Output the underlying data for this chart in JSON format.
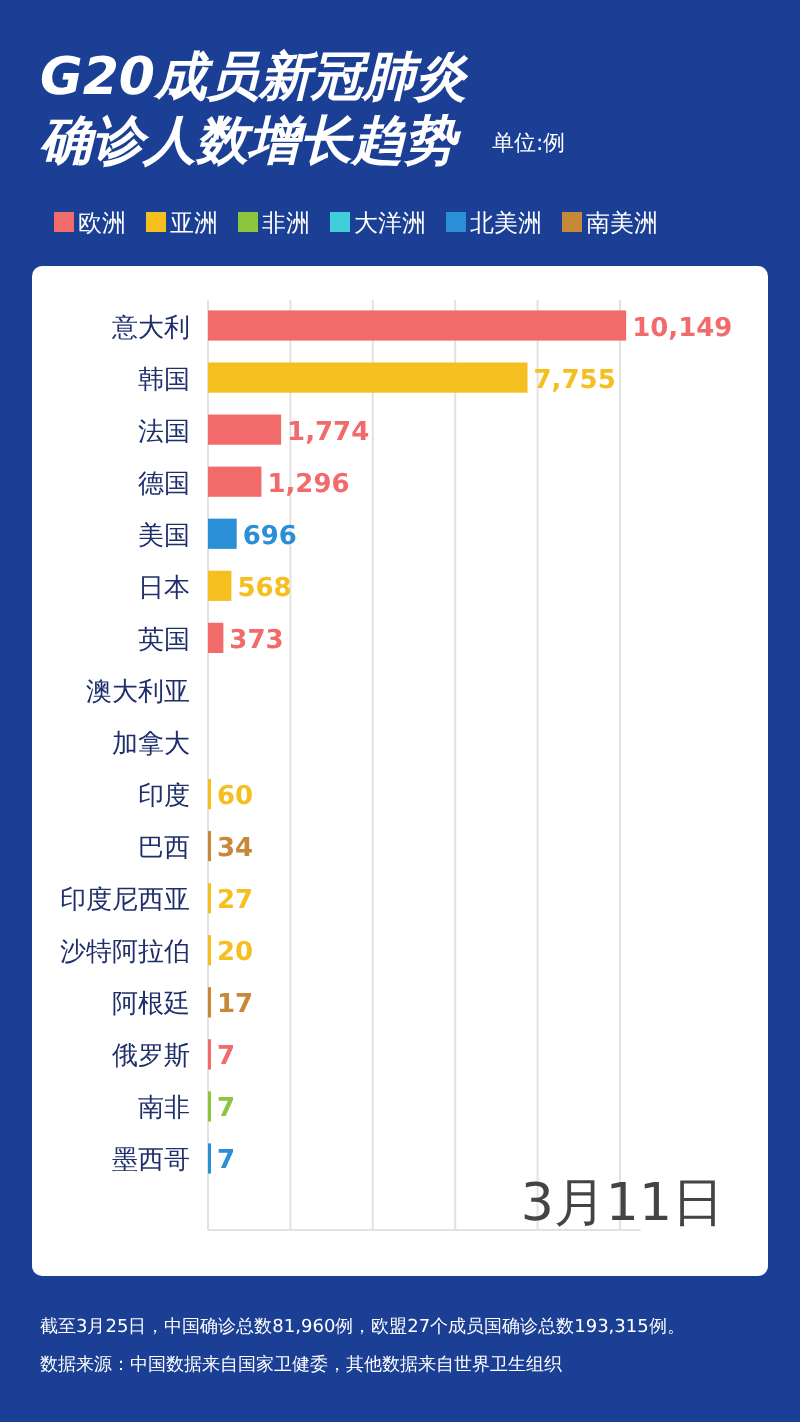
{
  "chart_data": {
    "type": "bar",
    "orientation": "horizontal",
    "title": "G20成员新冠肺炎确诊人数增长趋势",
    "subtitle": "单位:例",
    "categories": [
      "意大利",
      "韩国",
      "法国",
      "德国",
      "美国",
      "日本",
      "英国",
      "澳大利亚",
      "加拿大",
      "印度",
      "巴西",
      "印度尼西亚",
      "沙特阿拉伯",
      "阿根廷",
      "俄罗斯",
      "南非",
      "墨西哥"
    ],
    "series": [
      {
        "name": "欧洲",
        "color": "#f26b6b",
        "values": [
          10149,
          null,
          1774,
          1296,
          null,
          null,
          373,
          null,
          null,
          null,
          null,
          null,
          null,
          null,
          7,
          null,
          null
        ],
        "value_labels": [
          "10,149",
          null,
          "1,774",
          "1,296",
          null,
          null,
          "373",
          null,
          null,
          null,
          null,
          null,
          null,
          null,
          "7",
          null,
          null
        ]
      },
      {
        "name": "亚洲",
        "color": "#f5bf1f",
        "values": [
          null,
          7755,
          null,
          null,
          null,
          568,
          null,
          null,
          null,
          60,
          null,
          27,
          20,
          null,
          null,
          null,
          null
        ],
        "value_labels": [
          null,
          "7,755",
          null,
          null,
          null,
          "568",
          null,
          null,
          null,
          "60",
          null,
          "27",
          "20",
          null,
          null,
          null,
          null
        ]
      },
      {
        "name": "非洲",
        "color": "#8cc63f",
        "values": [
          null,
          null,
          null,
          null,
          null,
          null,
          null,
          null,
          null,
          null,
          null,
          null,
          null,
          null,
          null,
          7,
          null
        ],
        "value_labels": [
          null,
          null,
          null,
          null,
          null,
          null,
          null,
          null,
          null,
          null,
          null,
          null,
          null,
          null,
          null,
          "7",
          null
        ]
      },
      {
        "name": "大洋洲",
        "color": "#3fcfd8",
        "values": [
          null,
          null,
          null,
          null,
          null,
          null,
          null,
          null,
          null,
          null,
          null,
          null,
          null,
          null,
          null,
          null,
          null
        ]
      },
      {
        "name": "北美洲",
        "color": "#2a8fd6",
        "values": [
          null,
          null,
          null,
          null,
          696,
          null,
          null,
          null,
          null,
          null,
          null,
          null,
          null,
          null,
          null,
          null,
          7
        ],
        "value_labels": [
          null,
          null,
          null,
          null,
          "696",
          null,
          null,
          null,
          null,
          null,
          null,
          null,
          null,
          null,
          null,
          null,
          "7"
        ]
      },
      {
        "name": "南美洲",
        "color": "#c8883a",
        "values": [
          null,
          null,
          null,
          null,
          null,
          null,
          null,
          null,
          null,
          null,
          34,
          null,
          null,
          17,
          null,
          null,
          null
        ],
        "value_labels": [
          null,
          null,
          null,
          null,
          null,
          null,
          null,
          null,
          null,
          null,
          "34",
          null,
          null,
          "17",
          null,
          null,
          null
        ]
      }
    ],
    "xlim": [
      0,
      10500
    ],
    "xticks": [
      {
        "value": 0,
        "label": null
      },
      {
        "value": 2000,
        "label": null
      },
      {
        "value": 4000,
        "label": null
      },
      {
        "value": 6000,
        "label": null
      },
      {
        "value": 8000,
        "label": null
      },
      {
        "value": 10000,
        "label": null
      }
    ],
    "tick_labels": "y",
    "grid": "x",
    "legend": "top left",
    "annotations": [
      "3月11日",
      "截至3月25日，中国确诊总数81,960例，欧盟27个成员国确诊总数193,315例。",
      "数据来源：中国数据来自国家卫健委，其他数据来自世界卫生组织"
    ]
  }
}
